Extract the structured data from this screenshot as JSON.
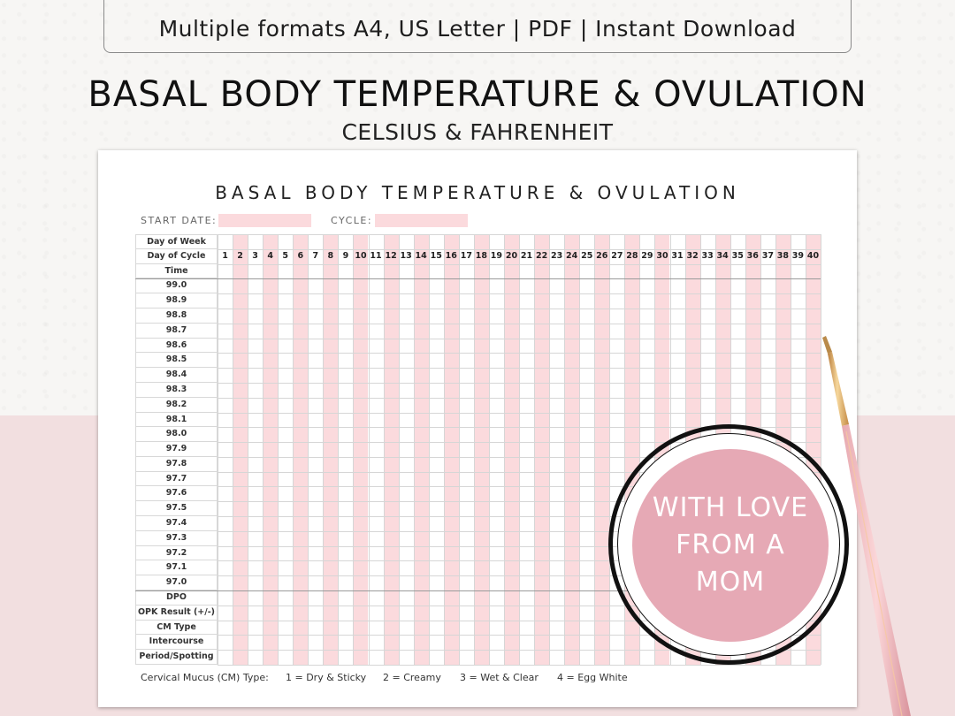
{
  "banner": {
    "text": "Multiple formats A4, US Letter | PDF | Instant Download"
  },
  "title": "BASAL BODY TEMPERATURE & OVULATION",
  "subtitle": "CELSIUS & FAHRENHEIT",
  "sheet": {
    "title": "BASAL BODY TEMPERATURE & OVULATION",
    "start_date_label": "START DATE:",
    "cycle_label": "CYCLE:",
    "row_labels_top": [
      "Day of Week",
      "Day of Cycle",
      "Time"
    ],
    "temperatures": [
      "99.0",
      "98.9",
      "98.8",
      "98.7",
      "98.6",
      "98.5",
      "98.4",
      "98.3",
      "98.2",
      "98.1",
      "98.0",
      "97.9",
      "97.8",
      "97.7",
      "97.6",
      "97.5",
      "97.4",
      "97.3",
      "97.2",
      "97.1",
      "97.0"
    ],
    "row_labels_bottom": [
      "DPO",
      "OPK Result (+/-)",
      "CM Type",
      "Intercourse",
      "Period/Spotting"
    ],
    "days": [
      "1",
      "2",
      "3",
      "4",
      "5",
      "6",
      "7",
      "8",
      "9",
      "10",
      "11",
      "12",
      "13",
      "14",
      "15",
      "16",
      "17",
      "18",
      "19",
      "20",
      "21",
      "22",
      "23",
      "24",
      "25",
      "26",
      "27",
      "28",
      "29",
      "30",
      "31",
      "32",
      "33",
      "34",
      "35",
      "36",
      "37",
      "38",
      "39",
      "40"
    ],
    "legend": [
      "Cervical Mucus (CM) Type:",
      "1 = Dry & Sticky",
      "2 = Creamy",
      "3 = Wet & Clear",
      "4 = Egg White"
    ]
  },
  "stamp": {
    "lines": [
      "WITH LOVE",
      "FROM A",
      "MOM"
    ]
  },
  "colors": {
    "accent_pink": "#fbdadd",
    "stamp_pink": "#e6a9b5",
    "bottom_bg": "#f2dfe0",
    "pen_gold": "#d8a25c"
  }
}
